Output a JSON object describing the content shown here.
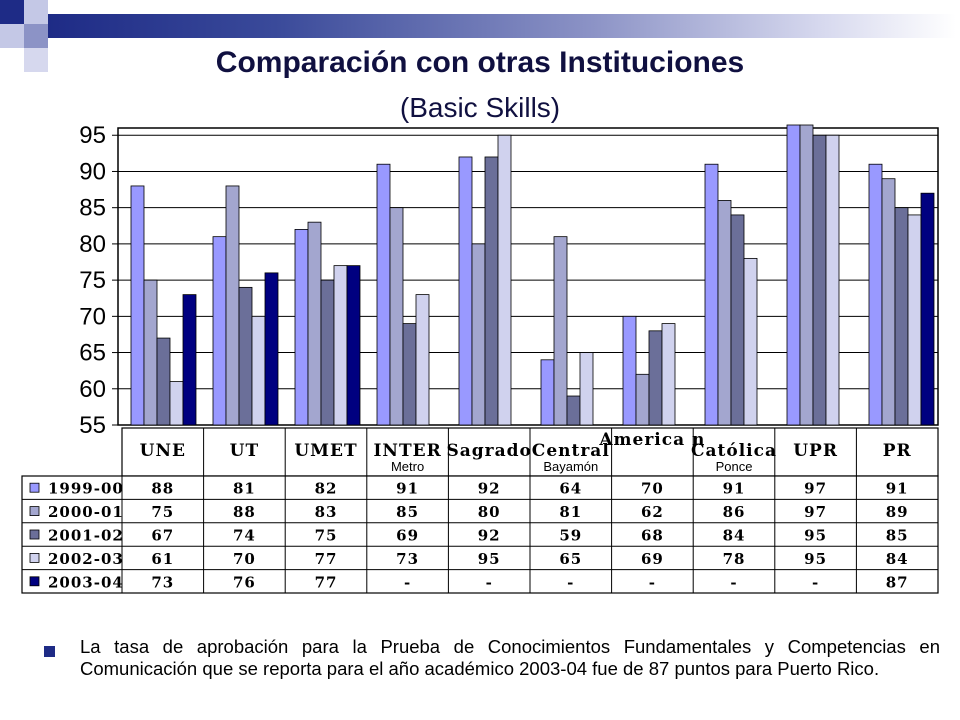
{
  "slide": {
    "title": "Comparación con otras Instituciones",
    "subtitle": "(Basic Skills)",
    "bullet": "La tasa de aprobación para la Prueba de Conocimientos Fundamentales y Competencias en Comunicación que se reporta para el año académico 2003-04 fue de 87 puntos para Puerto Rico."
  },
  "chart_data": {
    "type": "bar",
    "title": "",
    "xlabel": "",
    "ylabel": "",
    "ylim": [
      55,
      96
    ],
    "yticks": [
      55,
      60,
      65,
      70,
      75,
      80,
      85,
      90,
      95
    ],
    "grid": true,
    "categories": [
      "UNE",
      "UT",
      "UMET",
      "INTER",
      "Sagrado",
      "Central",
      "America n",
      "Católica",
      "UPR",
      "PR"
    ],
    "category_sublabels": [
      "",
      "",
      "",
      "Metro",
      "",
      "Bayamón",
      "",
      "Ponce",
      "",
      ""
    ],
    "series": [
      {
        "name": "1999-00",
        "color": "#9999ff",
        "values": [
          88,
          81,
          82,
          91,
          92,
          64,
          70,
          91,
          97,
          91
        ],
        "labels": [
          "88",
          "81",
          "82",
          "91",
          "92",
          "64",
          "70",
          "91",
          "97",
          "91"
        ]
      },
      {
        "name": "2000-01",
        "color": "#a3a6cf",
        "values": [
          75,
          88,
          83,
          85,
          80,
          81,
          62,
          86,
          97,
          89
        ],
        "labels": [
          "75",
          "88",
          "83",
          "85",
          "80",
          "81",
          "62",
          "86",
          "97",
          "89"
        ]
      },
      {
        "name": "2001-02",
        "color": "#6b6f99",
        "values": [
          67,
          74,
          75,
          69,
          92,
          59,
          68,
          84,
          95,
          85
        ],
        "labels": [
          "67",
          "74",
          "75",
          "69",
          "92",
          "59",
          "68",
          "84",
          "95",
          "85"
        ]
      },
      {
        "name": "2002-03",
        "color": "#d0d2ee",
        "values": [
          61,
          70,
          77,
          73,
          95,
          65,
          69,
          78,
          95,
          84
        ],
        "labels": [
          "61",
          "70",
          "77",
          "73",
          "95",
          "65",
          "69",
          "78",
          "95",
          "84"
        ]
      },
      {
        "name": "2003-04",
        "color": "#000080",
        "values": [
          73,
          76,
          77,
          null,
          null,
          null,
          null,
          null,
          null,
          87
        ],
        "labels": [
          "73",
          "76",
          "77",
          "-",
          "-",
          "-",
          "-",
          "-",
          "-",
          "87"
        ]
      }
    ]
  }
}
